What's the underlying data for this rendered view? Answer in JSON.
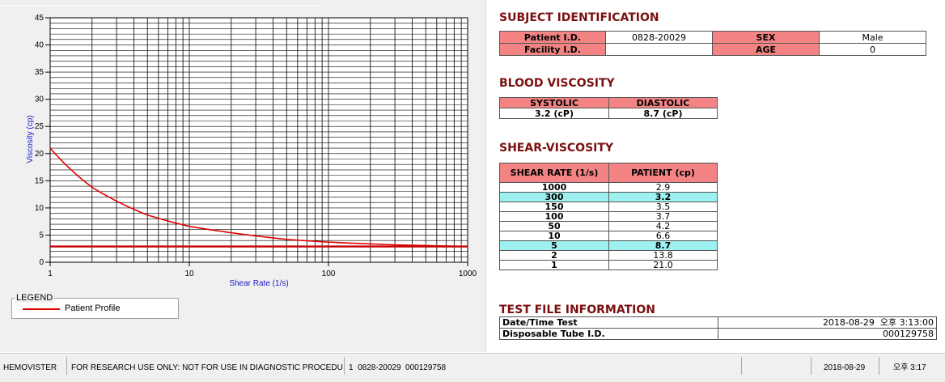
{
  "chart_data": {
    "type": "line",
    "xscale": "log",
    "xlim": [
      1,
      1000
    ],
    "ylim": [
      0,
      45
    ],
    "xlabel": "Shear Rate (1/s)",
    "ylabel": "Viscosity (cp)",
    "x_ticks": [
      "1",
      "10",
      "100",
      "1000"
    ],
    "y_ticks": [
      "0",
      "5",
      "10",
      "15",
      "20",
      "25",
      "30",
      "35",
      "40",
      "45"
    ],
    "grid": true,
    "series": [
      {
        "name": "Patient Profile",
        "color": "#e00000",
        "x": [
          1,
          2,
          5,
          10,
          50,
          100,
          150,
          300,
          1000
        ],
        "y": [
          21.0,
          13.8,
          8.7,
          6.6,
          4.2,
          3.7,
          3.5,
          3.2,
          2.9
        ]
      },
      {
        "name": "",
        "color": "#c80000",
        "x": [
          1,
          1000
        ],
        "y": [
          2.9,
          2.9
        ]
      }
    ]
  },
  "legend": {
    "title": "LEGEND",
    "items": [
      {
        "label": "Patient Profile",
        "color": "#e00000"
      }
    ]
  },
  "subject": {
    "title": "SUBJECT IDENTIFICATION",
    "patient_id_label": "Patient I.D.",
    "patient_id": "0828-20029",
    "sex_label": "SEX",
    "sex": "Male",
    "facility_id_label": "Facility I.D.",
    "facility_id": "",
    "age_label": "AGE",
    "age": "0"
  },
  "blood": {
    "title": "BLOOD VISCOSITY",
    "systolic_label": "SYSTOLIC",
    "diastolic_label": "DIASTOLIC",
    "systolic": "3.2 (cP)",
    "diastolic": "8.7 (cP)"
  },
  "shear": {
    "title": "SHEAR-VISCOSITY",
    "col_rate": "SHEAR RATE (1/s)",
    "col_patient": "PATIENT (cp)",
    "rows": [
      {
        "rate": "1000",
        "value": "2.9",
        "highlight": false
      },
      {
        "rate": "300",
        "value": "3.2",
        "highlight": true
      },
      {
        "rate": "150",
        "value": "3.5",
        "highlight": false
      },
      {
        "rate": "100",
        "value": "3.7",
        "highlight": false
      },
      {
        "rate": "50",
        "value": "4.2",
        "highlight": false
      },
      {
        "rate": "10",
        "value": "6.6",
        "highlight": false
      },
      {
        "rate": "5",
        "value": "8.7",
        "highlight": true
      },
      {
        "rate": "2",
        "value": "13.8",
        "highlight": false
      },
      {
        "rate": "1",
        "value": "21.0",
        "highlight": false
      }
    ]
  },
  "testfile": {
    "title": "TEST FILE INFORMATION",
    "datetime_label": "Date/Time Test",
    "datetime": "2018-08-29  오후 3:13:00",
    "tube_label": "Disposable Tube I.D.",
    "tube": "000129758"
  },
  "status": {
    "app": "HEMOVISTER",
    "notice": "FOR RESEARCH USE ONLY: NOT FOR USE IN DIAGNOSTIC PROCEDURES",
    "info": "1  0828-20029  000129758",
    "date": "2018-08-29",
    "time": "오후 3:17"
  }
}
